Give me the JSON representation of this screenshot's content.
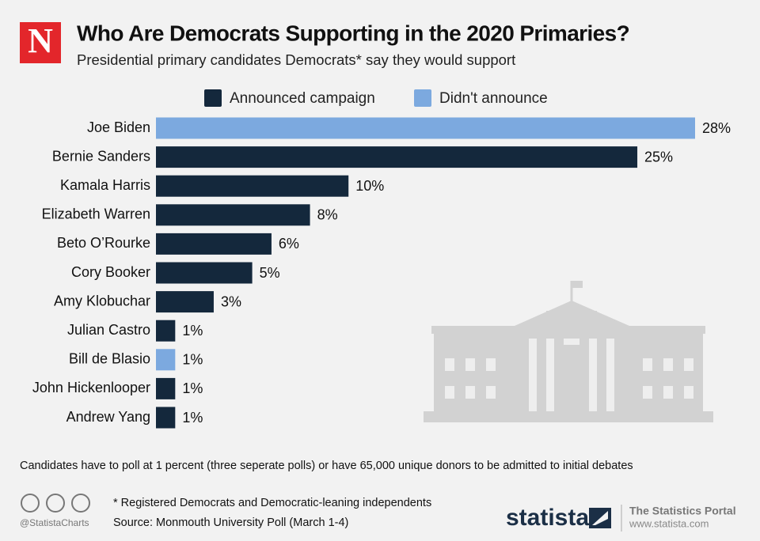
{
  "chart_data": {
    "type": "bar",
    "orientation": "horizontal",
    "logo": "N",
    "title": "Who Are Democrats Supporting in the 2020 Primaries?",
    "subtitle": "Presidential primary candidates Democrats* say they would support",
    "categories": [
      "Joe Biden",
      "Bernie Sanders",
      "Kamala Harris",
      "Elizabeth Warren",
      "Beto O’Rourke",
      "Cory Booker",
      "Amy Klobuchar",
      "Julian Castro",
      "Bill de Blasio",
      "John Hickenlooper",
      "Andrew Yang"
    ],
    "series": [
      {
        "name": "Announced campaign",
        "color": "#14283c",
        "values": [
          null,
          25,
          10,
          8,
          6,
          5,
          3,
          1,
          null,
          1,
          1
        ],
        "value_labels": [
          null,
          "25%",
          "10%",
          "8%",
          "6%",
          "5%",
          "3%",
          "1%",
          null,
          "1%",
          "1%"
        ]
      },
      {
        "name": "Didn't announce",
        "color": "#7ca9df",
        "values": [
          28,
          null,
          null,
          null,
          null,
          null,
          null,
          null,
          1,
          null,
          null
        ],
        "value_labels": [
          "28%",
          null,
          null,
          null,
          null,
          null,
          null,
          null,
          "1%",
          null,
          null
        ]
      }
    ],
    "legend": "top",
    "note": "Candidates have to poll at 1 percent (three seperate polls) or have 65,000 unique donors to be admitted to initial debates",
    "footnote": "* Registered Democrats and Democratic-leaning independents",
    "source": "Source: Monmouth University Poll (March 1-4)",
    "credit": "@StatistaCharts",
    "brand": "statista",
    "brand_tagline": "The Statistics Portal",
    "brand_url": "www.statista.com"
  }
}
